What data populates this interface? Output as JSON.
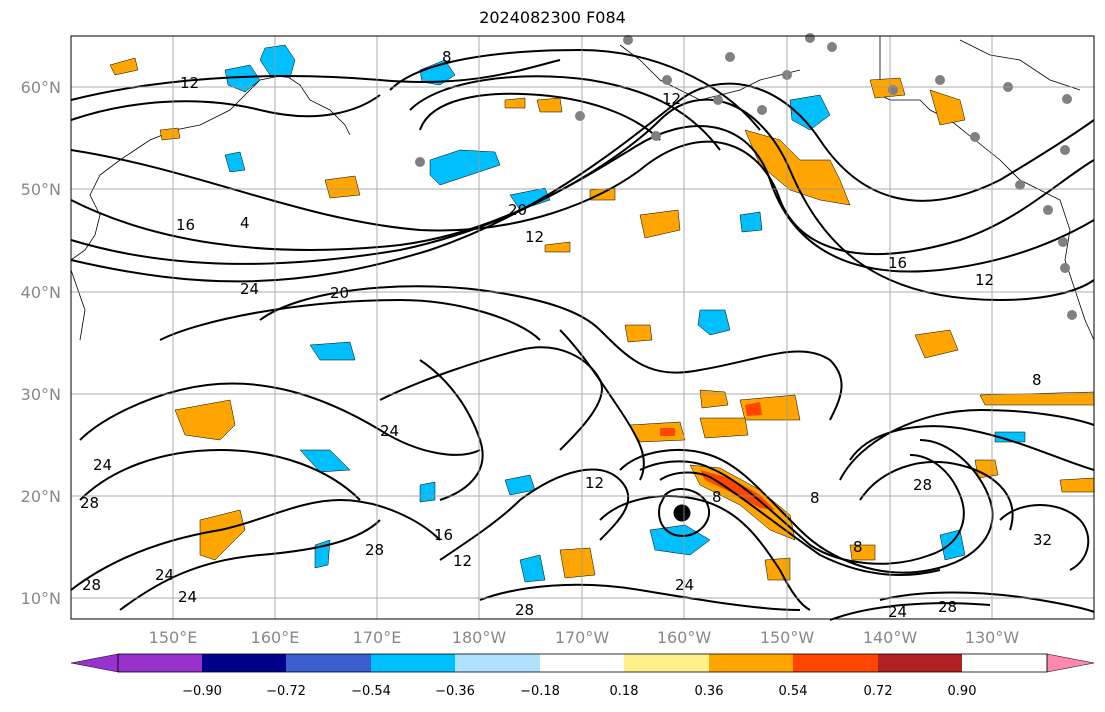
{
  "title": "2024082300 F084",
  "lat_labels": [
    "60°N",
    "50°N",
    "40°N",
    "30°N",
    "20°N",
    "10°N"
  ],
  "lon_labels": [
    "150°E",
    "160°E",
    "170°E",
    "180°W",
    "170°W",
    "160°W",
    "150°W",
    "140°W",
    "130°W"
  ],
  "contour_labels": [
    "12",
    "8",
    "12",
    "4",
    "16",
    "20",
    "12",
    "24",
    "20",
    "16",
    "12",
    "8",
    "24",
    "24",
    "28",
    "24",
    "12",
    "28",
    "16",
    "12",
    "24",
    "28",
    "8",
    "28",
    "32",
    "24",
    "28",
    "28",
    "8",
    "8",
    "24"
  ],
  "colorbar": {
    "ticks": [
      "−0.90",
      "−0.72",
      "−0.54",
      "−0.36",
      "−0.18",
      "0.18",
      "0.36",
      "0.54",
      "0.72",
      "0.90"
    ],
    "colors": [
      "#9932cc",
      "#00008b",
      "#3a5fcd",
      "#00bfff",
      "#b0e2ff",
      "#ffffff",
      "#fff08a",
      "#ffa500",
      "#ff4500",
      "#b22222",
      "#ff88b0"
    ]
  },
  "colors": {
    "positive": "#ffa500",
    "negative": "#00bfff",
    "contour": "#000000",
    "station": "#808080",
    "storm": "#000000"
  }
}
